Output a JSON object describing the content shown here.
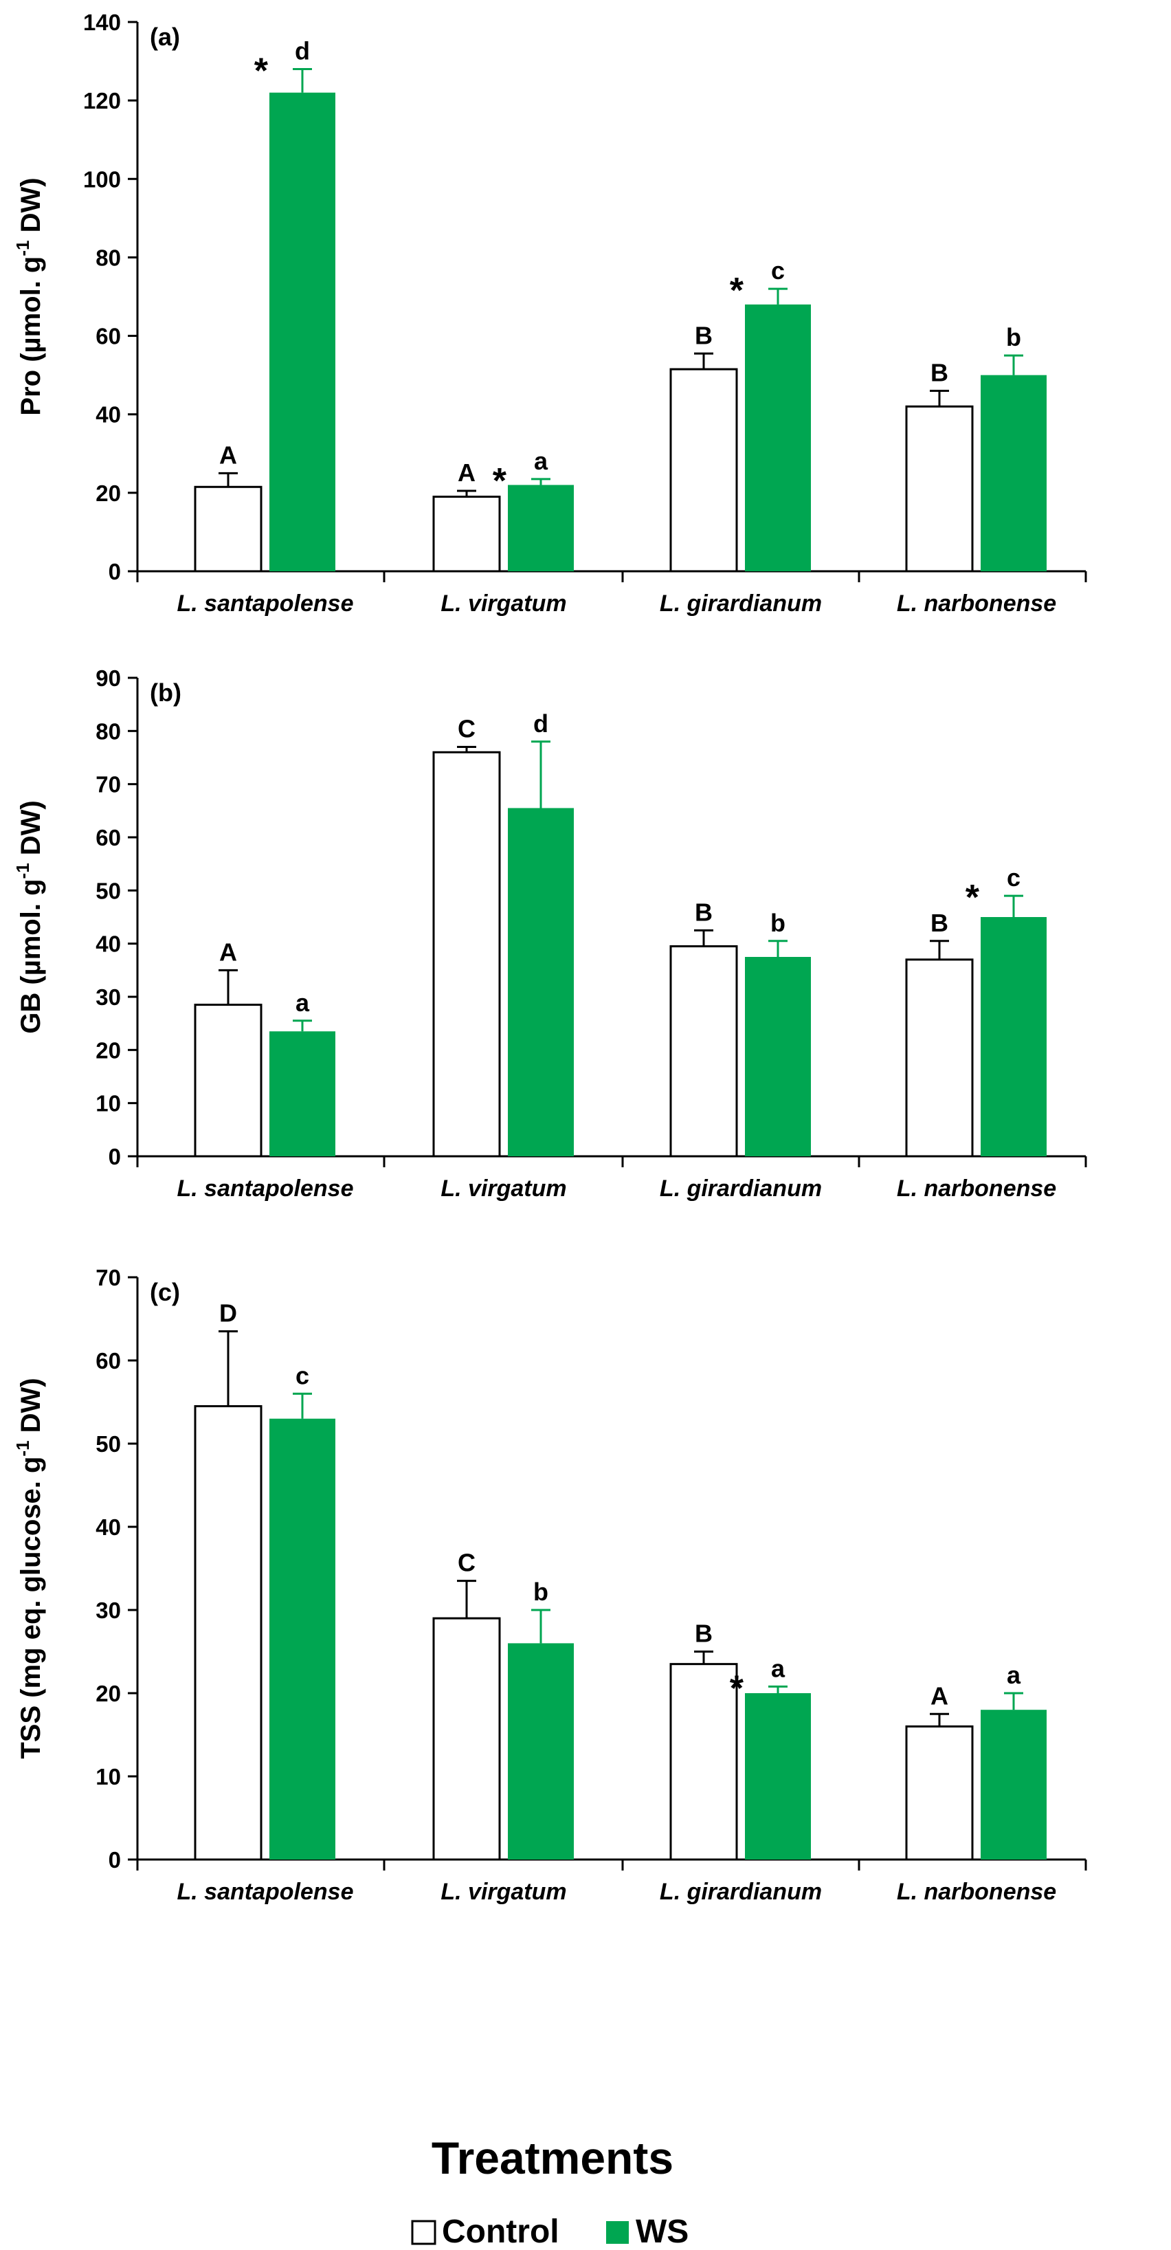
{
  "colors": {
    "control_fill": "#ffffff",
    "ws_fill": "#00a651",
    "axis": "#000000"
  },
  "legend": [
    {
      "label": "Control",
      "color": "#ffffff"
    },
    {
      "label": "WS",
      "color": "#00a651"
    }
  ],
  "xlabel": "Treatments",
  "chart_data": [
    {
      "type": "bar",
      "panel_label": "(a)",
      "ylabel": "Pro (µmol. g⁻¹ DW)",
      "ylabel_main": "Pro (µmol. g",
      "ylabel_sup": "-1",
      "ylabel_tail": " DW)",
      "ylim": [
        0,
        140
      ],
      "yticks": [
        0,
        20,
        40,
        60,
        80,
        100,
        120,
        140
      ],
      "categories": [
        "L. santapolense",
        "L. virgatum",
        "L. girardianum",
        "L. narbonense"
      ],
      "series": [
        {
          "name": "Control",
          "values": [
            21.5,
            19,
            51.5,
            42
          ],
          "errors": [
            3.5,
            1.5,
            4,
            4
          ],
          "letters": [
            "A",
            "A",
            "B",
            "B"
          ],
          "stars": [
            false,
            false,
            false,
            false
          ]
        },
        {
          "name": "WS",
          "values": [
            122,
            22,
            68,
            50
          ],
          "errors": [
            6,
            1.5,
            4,
            5
          ],
          "letters": [
            "d",
            "a",
            "c",
            "b"
          ],
          "stars": [
            true,
            true,
            true,
            false
          ]
        }
      ]
    },
    {
      "type": "bar",
      "panel_label": "(b)",
      "ylabel": "GB (µmol. g⁻¹ DW)",
      "ylabel_main": "GB (µmol. g",
      "ylabel_sup": "-1",
      "ylabel_tail": " DW)",
      "ylim": [
        0,
        90
      ],
      "yticks": [
        0,
        10,
        20,
        30,
        40,
        50,
        60,
        70,
        80,
        90
      ],
      "categories": [
        "L. santapolense",
        "L. virgatum",
        "L. girardianum",
        "L. narbonense"
      ],
      "series": [
        {
          "name": "Control",
          "values": [
            28.5,
            76,
            39.5,
            37
          ],
          "errors": [
            6.5,
            1,
            3,
            3.5
          ],
          "letters": [
            "A",
            "C",
            "B",
            "B"
          ],
          "stars": [
            false,
            false,
            false,
            false
          ]
        },
        {
          "name": "WS",
          "values": [
            23.5,
            65.5,
            37.5,
            45
          ],
          "errors": [
            2,
            12.5,
            3,
            4
          ],
          "letters": [
            "a",
            "d",
            "b",
            "c"
          ],
          "stars": [
            false,
            false,
            false,
            true
          ]
        }
      ]
    },
    {
      "type": "bar",
      "panel_label": "(c)",
      "ylabel": "TSS (mg eq. glucose. g⁻¹ DW)",
      "ylabel_main": "TSS (mg eq. glucose. g",
      "ylabel_sup": "-1",
      "ylabel_tail": " DW)",
      "ylim": [
        0,
        70
      ],
      "yticks": [
        0,
        10,
        20,
        30,
        40,
        50,
        60,
        70
      ],
      "categories": [
        "L. santapolense",
        "L. virgatum",
        "L. girardianum",
        "L. narbonense"
      ],
      "series": [
        {
          "name": "Control",
          "values": [
            54.5,
            29,
            23.5,
            16
          ],
          "errors": [
            9,
            4.5,
            1.5,
            1.5
          ],
          "letters": [
            "D",
            "C",
            "B",
            "A"
          ],
          "stars": [
            false,
            false,
            false,
            false
          ]
        },
        {
          "name": "WS",
          "values": [
            53,
            26,
            20,
            18
          ],
          "errors": [
            3,
            4,
            0.8,
            2
          ],
          "letters": [
            "c",
            "b",
            "a",
            "a"
          ],
          "stars": [
            false,
            false,
            true,
            false
          ]
        }
      ]
    }
  ]
}
